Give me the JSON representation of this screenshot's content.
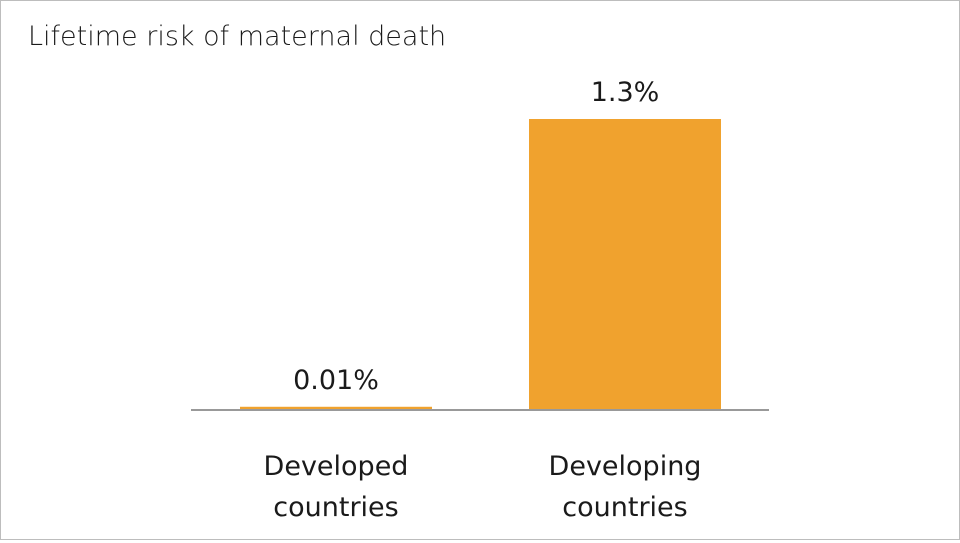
{
  "chart_data": {
    "type": "bar",
    "title": "Lifetime risk of maternal death",
    "categories": [
      [
        "Developed",
        "countries"
      ],
      [
        "Developing",
        "countries"
      ]
    ],
    "values": [
      0.01,
      1.3
    ],
    "value_labels": [
      "0.01%",
      "1.3%"
    ],
    "ylim": [
      0,
      1.3
    ],
    "grid": false,
    "legend": "none",
    "colors": {
      "bar": "#F0A22E",
      "axis": "#999999"
    }
  }
}
